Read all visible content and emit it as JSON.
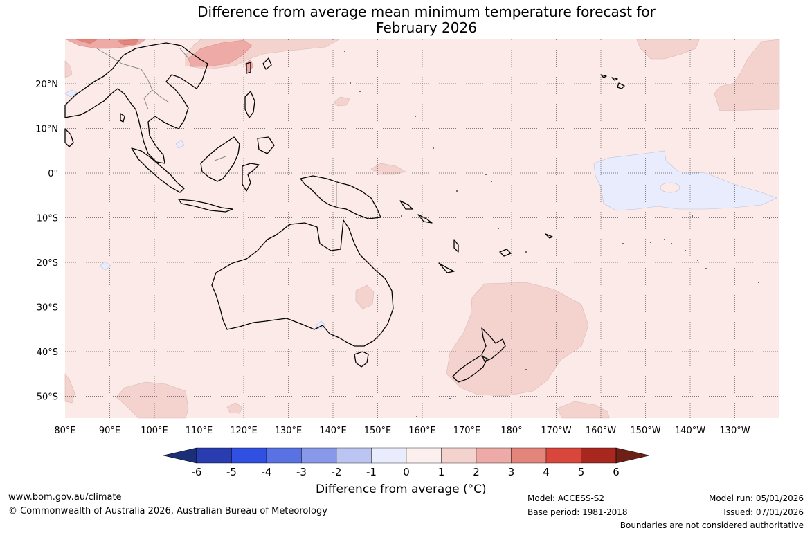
{
  "title": {
    "line1": "Difference from average mean minimum temperature forecast for",
    "line2": "February 2026"
  },
  "map": {
    "lon_labels": [
      "80°E",
      "90°E",
      "100°E",
      "110°E",
      "120°E",
      "130°E",
      "140°E",
      "150°E",
      "160°E",
      "170°E",
      "180°",
      "170°W",
      "160°W",
      "150°W",
      "140°W",
      "130°W"
    ],
    "lat_labels": [
      "20°N",
      "10°N",
      "0°",
      "10°S",
      "20°S",
      "30°S",
      "40°S",
      "50°S"
    ],
    "colors": {
      "anom_0_1": "#fbeae8",
      "anom_1_2": "#f4d3cf",
      "anom_2_3": "#eeaaa6",
      "anom_3_4": "#e4857c",
      "anom_m1_0": "#e9ecfc",
      "land_border": "#000000",
      "grid": "#555555"
    }
  },
  "colorbar": {
    "ticks": [
      "-6",
      "-5",
      "-4",
      "-3",
      "-2",
      "-1",
      "0",
      "1",
      "2",
      "3",
      "4",
      "5",
      "6"
    ],
    "colors": [
      "#1a2f78",
      "#2a3db0",
      "#2f50e0",
      "#5872e4",
      "#8799e8",
      "#bcc5f2",
      "#e9ecfc",
      "#fbf0ee",
      "#f4d3cf",
      "#eeaaa6",
      "#e4857c",
      "#d9463b",
      "#a8281f",
      "#6e1f16"
    ],
    "label": "Difference from average (°C)"
  },
  "footer": {
    "url": "www.bom.gov.au/climate",
    "copyright": "© Commonwealth of Australia 2026, Australian Bureau of Meteorology",
    "model": "Model: ACCESS-S2",
    "base_period": "Base period: 1981-2018",
    "model_run": "Model run: 05/01/2026",
    "issued": "Issued: 07/01/2026",
    "disclaimer": "Boundaries are not considered authoritative"
  }
}
